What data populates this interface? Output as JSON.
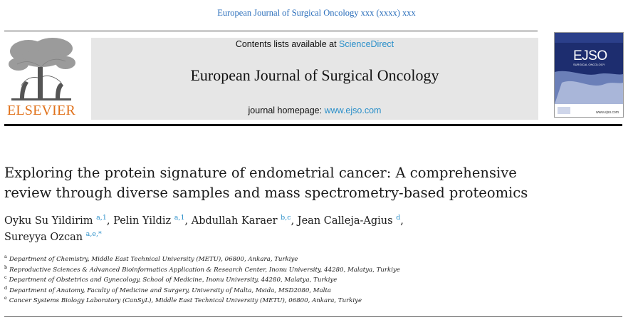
{
  "header": {
    "journal_ref": "European Journal of Surgical Oncology xxx (xxxx) xxx",
    "contents_prefix": "Contents lists available at ",
    "contents_link": "ScienceDirect",
    "journal_title": "European Journal of Surgical Oncology",
    "homepage_prefix": "journal homepage: ",
    "homepage_link": "www.ejso.com",
    "publisher": "ELSEVIER",
    "cover_title": "EJSO",
    "cover_subtitle": "SURGICAL ONCOLOGY",
    "cover_url": "www.ejso.com"
  },
  "article": {
    "title_line1": "Exploring the protein signature of endometrial cancer: A comprehensive",
    "title_line2": "review through diverse samples and mass spectrometry-based proteomics",
    "authors": [
      {
        "name": "Oyku Su Yildirim",
        "sup": "a,1",
        "sep": ", "
      },
      {
        "name": "Pelin Yildiz",
        "sup": "a,1",
        "sep": ", "
      },
      {
        "name": "Abdullah Karaer",
        "sup": "b,c",
        "sep": ", "
      },
      {
        "name": "Jean Calleja-Agius",
        "sup": "d",
        "sep": ","
      },
      {
        "name": "Sureyya Ozcan",
        "sup": "a,e,*",
        "sep": ""
      }
    ],
    "affiliations": [
      {
        "label": "a",
        "text": "Department of Chemistry, Middle East Technical University (METU), 06800, Ankara, Turkiye"
      },
      {
        "label": "b",
        "text": "Reproductive Sciences & Advanced Bioinformatics Application & Research Center, Inonu University, 44280, Malatya, Turkiye"
      },
      {
        "label": "c",
        "text": "Department of Obstetrics and Gynecology, School of Medicine, Inonu University, 44280, Malatya, Turkiye"
      },
      {
        "label": "d",
        "text": "Department of Anatomy, Faculty of Medicine and Surgery, University of Malta, Msida, MSD2080, Malta"
      },
      {
        "label": "e",
        "text": "Cancer Systems Biology Laboratory (CanSyL), Middle East Technical University (METU), 06800, Ankara, Turkiye"
      }
    ]
  },
  "colors": {
    "link": "#2a8fc9",
    "publisher_orange": "#e0711a",
    "masthead_bg": "#e6e6e6"
  }
}
